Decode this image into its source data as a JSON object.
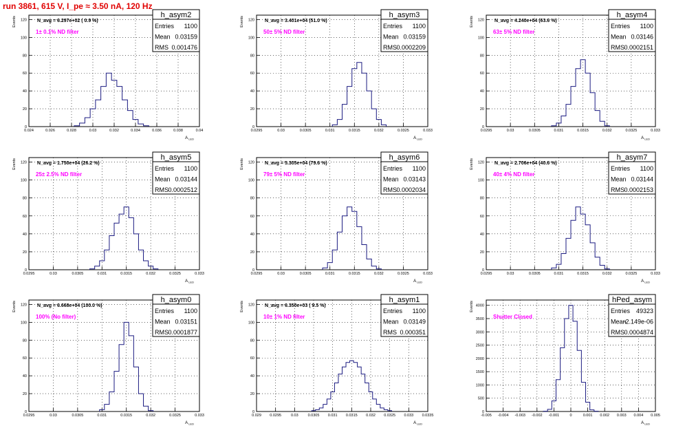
{
  "page_title": "run 3861,   615 V, I_pe ≈ 3.50 nA, 120 Hz",
  "colors": {
    "title": "#e00000",
    "hist": "#1a1a80",
    "note": "#ff00ff",
    "frame": "#000000",
    "grid": "#000000"
  },
  "chart_data": [
    {
      "type": "histogram",
      "name": "h_asym2",
      "stats": {
        "entries_label": "Entries",
        "entries": "1100",
        "mean_label": "Mean",
        "mean": "0.03159",
        "rms_label": "RMS",
        "rms": "0.001476"
      },
      "navg": "N_avg = 6.297e+02 ( 0.9 %)",
      "note": "1± 0.1% ND filter",
      "xlabel": "A",
      "xlabel_sub": "LED",
      "ylabel": "Events",
      "xlim": [
        0.024,
        0.04
      ],
      "ylim": [
        0,
        125
      ],
      "xticks": [
        "0.024",
        "0.026",
        "0.028",
        "0.03",
        "0.032",
        "0.034",
        "0.036",
        "0.038",
        "0.04"
      ],
      "yticks": [
        "0",
        "20",
        "40",
        "60",
        "80",
        "100",
        "120"
      ],
      "grid": true,
      "bin_x": [
        0.0285,
        0.029,
        0.0295,
        0.03,
        0.0305,
        0.031,
        0.0315,
        0.032,
        0.0325,
        0.033,
        0.0335,
        0.034,
        0.0345,
        0.035
      ],
      "bin_y": [
        1,
        4,
        10,
        20,
        30,
        45,
        60,
        52,
        45,
        30,
        18,
        8,
        3,
        1
      ]
    },
    {
      "type": "histogram",
      "name": "h_asym3",
      "stats": {
        "entries_label": "Entries",
        "entries": "1100",
        "mean_label": "Mean",
        "mean": "0.03159",
        "rms_label": "RMS",
        "rms": "0.0002209"
      },
      "navg": "N_avg = 3.401e+04 (51.0 %)",
      "note": "50± 5% ND filter",
      "xlabel": "A",
      "xlabel_sub": "LED",
      "ylabel": "Events",
      "xlim": [
        0.0295,
        0.033
      ],
      "ylim": [
        0,
        125
      ],
      "xticks": [
        "0.0295",
        "0.03",
        "0.0305",
        "0.031",
        "0.0315",
        "0.032",
        "0.0325",
        "0.033"
      ],
      "yticks": [
        "0",
        "20",
        "40",
        "60",
        "80",
        "100",
        "120"
      ],
      "grid": true,
      "bin_x": [
        0.0311,
        0.0312,
        0.0313,
        0.0314,
        0.0315,
        0.0316,
        0.0317,
        0.0318,
        0.0319,
        0.032,
        0.0321
      ],
      "bin_y": [
        2,
        8,
        25,
        45,
        65,
        72,
        60,
        40,
        20,
        8,
        2
      ]
    },
    {
      "type": "histogram",
      "name": "h_asym4",
      "stats": {
        "entries_label": "Entries",
        "entries": "1100",
        "mean_label": "Mean",
        "mean": "0.03146",
        "rms_label": "RMS",
        "rms": "0.0002151"
      },
      "navg": "N_avg = 4.240e+04 (63.6 %)",
      "note": "63± 5% ND filter",
      "xlabel": "A",
      "xlabel_sub": "LED",
      "ylabel": "Events",
      "xlim": [
        0.0295,
        0.033
      ],
      "ylim": [
        0,
        125
      ],
      "xticks": [
        "0.0295",
        "0.03",
        "0.0305",
        "0.031",
        "0.0315",
        "0.032",
        "0.0325",
        "0.033"
      ],
      "yticks": [
        "0",
        "20",
        "40",
        "60",
        "80",
        "100",
        "120"
      ],
      "grid": true,
      "bin_x": [
        0.0309,
        0.031,
        0.0311,
        0.0312,
        0.0313,
        0.0314,
        0.0315,
        0.0316,
        0.0317,
        0.0318,
        0.0319,
        0.032
      ],
      "bin_y": [
        1,
        4,
        12,
        25,
        45,
        65,
        75,
        60,
        38,
        18,
        6,
        1
      ]
    },
    {
      "type": "histogram",
      "name": "h_asym5",
      "stats": {
        "entries_label": "Entries",
        "entries": "1100",
        "mean_label": "Mean",
        "mean": "0.03144",
        "rms_label": "RMS",
        "rms": "0.0002512"
      },
      "navg": "N_avg = 1.750e+04 (26.2 %)",
      "note": "25± 2.5% ND filter",
      "xlabel": "A",
      "xlabel_sub": "LED",
      "ylabel": "Events",
      "xlim": [
        0.0295,
        0.033
      ],
      "ylim": [
        0,
        125
      ],
      "xticks": [
        "0.0295",
        "0.03",
        "0.0305",
        "0.031",
        "0.0315",
        "0.032",
        "0.0325",
        "0.033"
      ],
      "yticks": [
        "0",
        "20",
        "40",
        "60",
        "80",
        "100",
        "120"
      ],
      "grid": true,
      "bin_x": [
        0.0308,
        0.0309,
        0.031,
        0.0311,
        0.0312,
        0.0313,
        0.0314,
        0.0315,
        0.0316,
        0.0317,
        0.0318,
        0.0319,
        0.032,
        0.0321
      ],
      "bin_y": [
        1,
        4,
        10,
        22,
        38,
        52,
        62,
        70,
        58,
        40,
        22,
        10,
        4,
        1
      ]
    },
    {
      "type": "histogram",
      "name": "h_asym6",
      "stats": {
        "entries_label": "Entries",
        "entries": "1100",
        "mean_label": "Mean",
        "mean": "0.03143",
        "rms_label": "RMS",
        "rms": "0.0002034"
      },
      "navg": "N_avg = 5.305e+04 (79.6 %)",
      "note": "79± 5% ND filter",
      "xlabel": "A",
      "xlabel_sub": "LED",
      "ylabel": "Events",
      "xlim": [
        0.0295,
        0.033
      ],
      "ylim": [
        0,
        125
      ],
      "xticks": [
        "0.0295",
        "0.03",
        "0.0305",
        "0.031",
        "0.0315",
        "0.032",
        "0.0325",
        "0.033"
      ],
      "yticks": [
        "0",
        "20",
        "40",
        "60",
        "80",
        "100",
        "120"
      ],
      "grid": true,
      "bin_x": [
        0.0309,
        0.031,
        0.0311,
        0.0312,
        0.0313,
        0.0314,
        0.0315,
        0.0316,
        0.0317,
        0.0318,
        0.0319,
        0.032
      ],
      "bin_y": [
        2,
        8,
        22,
        42,
        60,
        70,
        65,
        48,
        28,
        12,
        4,
        1
      ]
    },
    {
      "type": "histogram",
      "name": "h_asym7",
      "stats": {
        "entries_label": "Entries",
        "entries": "1100",
        "mean_label": "Mean",
        "mean": "0.03144",
        "rms_label": "RMS",
        "rms": "0.0002153"
      },
      "navg": "N_avg = 2.706e+04 (40.6 %)",
      "note": "40± 4% ND filter",
      "xlabel": "A",
      "xlabel_sub": "LED",
      "ylabel": "Events",
      "xlim": [
        0.0295,
        0.033
      ],
      "ylim": [
        0,
        125
      ],
      "xticks": [
        "0.0295",
        "0.03",
        "0.0305",
        "0.031",
        "0.0315",
        "0.032",
        "0.0325",
        "0.033"
      ],
      "yticks": [
        "0",
        "20",
        "40",
        "60",
        "80",
        "100",
        "120"
      ],
      "grid": true,
      "bin_x": [
        0.0309,
        0.031,
        0.0311,
        0.0312,
        0.0313,
        0.0314,
        0.0315,
        0.0316,
        0.0317,
        0.0318,
        0.0319,
        0.032
      ],
      "bin_y": [
        2,
        6,
        18,
        35,
        55,
        70,
        62,
        50,
        30,
        14,
        5,
        1
      ]
    },
    {
      "type": "histogram",
      "name": "h_asym0",
      "stats": {
        "entries_label": "Entries",
        "entries": "1100",
        "mean_label": "Mean",
        "mean": "0.03151",
        "rms_label": "RMS",
        "rms": "0.0001877"
      },
      "navg": "N_avg = 6.668e+04 (100.0 %)",
      "note": "100% (No filter)",
      "xlabel": "A",
      "xlabel_sub": "LED",
      "ylabel": "Events",
      "xlim": [
        0.0295,
        0.033
      ],
      "ylim": [
        0,
        125
      ],
      "xticks": [
        "0.0295",
        "0.03",
        "0.0305",
        "0.031",
        "0.0315",
        "0.032",
        "0.0325",
        "0.033"
      ],
      "yticks": [
        "0",
        "20",
        "40",
        "60",
        "80",
        "100",
        "120"
      ],
      "grid": true,
      "bin_x": [
        0.031,
        0.0311,
        0.0312,
        0.0313,
        0.0314,
        0.0315,
        0.0316,
        0.0317,
        0.0318,
        0.0319,
        0.032
      ],
      "bin_y": [
        2,
        8,
        22,
        45,
        75,
        100,
        85,
        50,
        20,
        6,
        1
      ]
    },
    {
      "type": "histogram",
      "name": "h_asym1",
      "stats": {
        "entries_label": "Entries",
        "entries": "1100",
        "mean_label": "Mean",
        "mean": "0.03149",
        "rms_label": "RMS",
        "rms": "0.000351"
      },
      "navg": "N_avg = 6.350e+03 ( 9.5 %)",
      "note": "10± 1% ND filter",
      "xlabel": "A",
      "xlabel_sub": "LED",
      "ylabel": "Events",
      "xlim": [
        0.029,
        0.0335
      ],
      "ylim": [
        0,
        125
      ],
      "xticks": [
        "0.029",
        "0.0295",
        "0.03",
        "0.0305",
        "0.031",
        "0.0315",
        "0.032",
        "0.0325",
        "0.033",
        "0.0335"
      ],
      "yticks": [
        "0",
        "20",
        "40",
        "60",
        "80",
        "100",
        "120"
      ],
      "grid": true,
      "bin_x": [
        0.0305,
        0.0306,
        0.0307,
        0.0308,
        0.0309,
        0.031,
        0.0311,
        0.0312,
        0.0313,
        0.0314,
        0.0315,
        0.0316,
        0.0317,
        0.0318,
        0.0319,
        0.032,
        0.0321,
        0.0322,
        0.0323,
        0.0324,
        0.0325
      ],
      "bin_y": [
        1,
        2,
        4,
        8,
        14,
        22,
        32,
        42,
        50,
        55,
        57,
        55,
        50,
        42,
        32,
        22,
        14,
        8,
        4,
        2,
        1
      ]
    },
    {
      "type": "histogram",
      "name": "hPed_asym",
      "stats": {
        "entries_label": "Entries",
        "entries": "49323",
        "mean_label": "Mean",
        "mean": "-2.149e-06",
        "rms_label": "RMS",
        "rms": "0.0004874"
      },
      "navg": "",
      "note": "Shutter Closed",
      "xlabel": "A",
      "xlabel_sub": "LED",
      "ylabel": "Events",
      "xlim": [
        -0.005,
        0.005
      ],
      "ylim": [
        0,
        4200
      ],
      "xticks": [
        "-0.005",
        "-0.004",
        "-0.003",
        "-0.002",
        "-0.001",
        "0",
        "0.001",
        "0.002",
        "0.003",
        "0.004",
        "0.005"
      ],
      "yticks": [
        "0",
        "500",
        "1000",
        "1500",
        "2000",
        "2500",
        "3000",
        "3500",
        "4000"
      ],
      "grid": true,
      "bin_x": [
        -0.0015,
        -0.00125,
        -0.001,
        -0.00075,
        -0.0005,
        -0.00025,
        0,
        0.00025,
        0.0005,
        0.00075,
        0.001,
        0.00125,
        0.0015
      ],
      "bin_y": [
        10,
        80,
        400,
        1200,
        2400,
        3500,
        4000,
        3400,
        2300,
        1100,
        350,
        60,
        10
      ]
    }
  ]
}
